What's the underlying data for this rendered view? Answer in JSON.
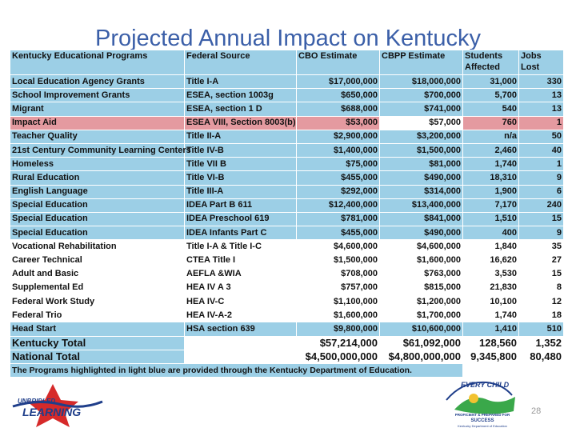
{
  "title": "Projected Annual Impact on Kentucky",
  "headers": {
    "program": "Kentucky Educational Programs",
    "source": "Federal Source",
    "cbo": "CBO Estimate",
    "cbpp": "CBPP Estimate",
    "students": "Students Affected",
    "jobs": "Jobs Lost"
  },
  "rows": [
    {
      "program": "Local Education Agency Grants",
      "source": "Title I-A",
      "cbo": "$17,000,000",
      "cbpp": "$18,000,000",
      "students": "31,000",
      "jobs": "330"
    },
    {
      "program": "School Improvement Grants",
      "source": "ESEA, section 1003g",
      "cbo": "$650,000",
      "cbpp": "$700,000",
      "students": "5,700",
      "jobs": "13"
    },
    {
      "program": "Migrant",
      "source": "ESEA, section 1 D",
      "cbo": "$688,000",
      "cbpp": "$741,000",
      "students": "540",
      "jobs": "13"
    },
    {
      "program": "Impact Aid",
      "source": "ESEA VIII, Section 8003(b)",
      "cbo": "$53,000",
      "cbpp": "$57,000",
      "students": "760",
      "jobs": "1"
    },
    {
      "program": "Teacher Quality",
      "source": "Title II-A",
      "cbo": "$2,900,000",
      "cbpp": "$3,200,000",
      "students": "n/a",
      "jobs": "50"
    },
    {
      "program": "21st Century Community Learning Centers",
      "source": "Title IV-B",
      "cbo": "$1,400,000",
      "cbpp": "$1,500,000",
      "students": "2,460",
      "jobs": "40"
    },
    {
      "program": "Homeless",
      "source": "Title VII B",
      "cbo": "$75,000",
      "cbpp": "$81,000",
      "students": "1,740",
      "jobs": "1"
    },
    {
      "program": "Rural Education",
      "source": "Title VI-B",
      "cbo": "$455,000",
      "cbpp": "$490,000",
      "students": "18,310",
      "jobs": "9"
    },
    {
      "program": "English Language",
      "source": "Title III-A",
      "cbo": "$292,000",
      "cbpp": "$314,000",
      "students": "1,900",
      "jobs": "6"
    },
    {
      "program": "Special Education",
      "source": "IDEA Part B 611",
      "cbo": "$12,400,000",
      "cbpp": "$13,400,000",
      "students": "7,170",
      "jobs": "240"
    },
    {
      "program": "Special Education",
      "source": "IDEA Preschool 619",
      "cbo": "$781,000",
      "cbpp": "$841,000",
      "students": "1,510",
      "jobs": "15"
    },
    {
      "program": "Special Education",
      "source": "IDEA Infants Part C",
      "cbo": "$455,000",
      "cbpp": "$490,000",
      "students": "400",
      "jobs": "9"
    },
    {
      "program": "Vocational Rehabilitation",
      "source": "Title I-A & Title I-C",
      "cbo": "$4,600,000",
      "cbpp": "$4,600,000",
      "students": "1,840",
      "jobs": "35"
    },
    {
      "program": "Career Technical",
      "source": "CTEA Title I",
      "cbo": "$1,500,000",
      "cbpp": "$1,600,000",
      "students": "16,620",
      "jobs": "27"
    },
    {
      "program": "Adult and Basic",
      "source": "AEFLA &WIA",
      "cbo": "$708,000",
      "cbpp": "$763,000",
      "students": "3,530",
      "jobs": "15"
    },
    {
      "program": "Supplemental Ed",
      "source": "HEA IV A 3",
      "cbo": "$757,000",
      "cbpp": "$815,000",
      "students": "21,830",
      "jobs": "8"
    },
    {
      "program": "Federal Work Study",
      "source": "HEA IV-C",
      "cbo": "$1,100,000",
      "cbpp": "$1,200,000",
      "students": "10,100",
      "jobs": "12"
    },
    {
      "program": "Federal Trio",
      "source": "HEA IV-A-2",
      "cbo": "$1,600,000",
      "cbpp": "$1,700,000",
      "students": "1,740",
      "jobs": "18"
    },
    {
      "program": "Head Start",
      "source": "HSA section 639",
      "cbo": "$9,800,000",
      "cbpp": "$10,600,000",
      "students": "1,410",
      "jobs": "510"
    }
  ],
  "totals": [
    {
      "program": "Kentucky Total",
      "cbo": "$57,214,000",
      "cbpp": "$61,092,000",
      "students": "128,560",
      "jobs": "1,352"
    },
    {
      "program": "National Total",
      "cbo": "$4,500,000,000",
      "cbpp": "$4,800,000,000",
      "students": "9,345,800",
      "jobs": "80,480"
    }
  ],
  "note": "The Programs highlighted in light blue are provided through the Kentucky Department of Education.",
  "left_logo_text": [
    "UNBRIDLED",
    "LEARNING"
  ],
  "right_logo_text": [
    "EVERY CHILD",
    "PROFICIENT & PREPARED FOR",
    "SUCCESS",
    "Kentucky Department of Education"
  ],
  "page_number": "28",
  "colors": {
    "light_blue": "#9ccfe6",
    "pink": "#e49aa0",
    "title": "#3b5fa8"
  }
}
